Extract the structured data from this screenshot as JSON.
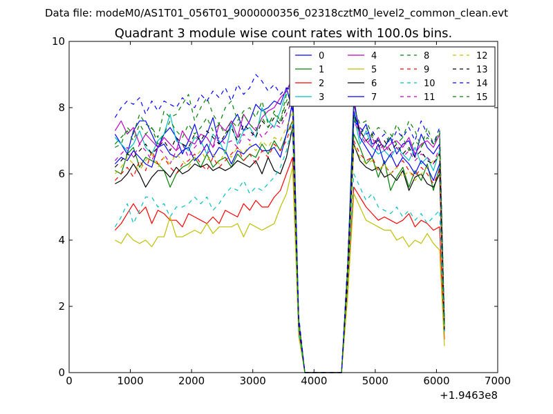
{
  "figure": {
    "suptitle": "Data file: modeM0/AS1T01_056T01_9000000356_02318cztM0_level2_common_clean.evt",
    "title": "Quadrant 3 module wise count rates with 100.0s bins.",
    "x_offset_label": "+1.9463e8"
  },
  "chart_data": {
    "type": "line",
    "title": "Quadrant 3 module wise count rates with 100.0s bins.",
    "xlabel": "",
    "ylabel": "",
    "xlim": [
      0,
      7000
    ],
    "ylim": [
      0,
      10
    ],
    "x_offset": "+1.9463e8",
    "xticks": [
      0,
      1000,
      2000,
      3000,
      4000,
      5000,
      6000,
      7000
    ],
    "yticks": [
      0,
      2,
      4,
      6,
      8,
      10
    ],
    "legend": {
      "placement": "top-right",
      "columns": 4
    },
    "x": [
      750,
      850,
      950,
      1050,
      1150,
      1250,
      1350,
      1450,
      1550,
      1650,
      1750,
      1850,
      1950,
      2050,
      2150,
      2250,
      2350,
      2450,
      2550,
      2650,
      2750,
      2850,
      2950,
      3050,
      3150,
      3250,
      3350,
      3450,
      3550,
      3650,
      3750,
      3850,
      3950,
      4050,
      4150,
      4250,
      4350,
      4450,
      4550,
      4650,
      4750,
      4850,
      4950,
      5050,
      5150,
      5250,
      5350,
      5450,
      5550,
      5650,
      5750,
      5850,
      5950,
      6050,
      6130
    ],
    "series": [
      {
        "name": "0",
        "color": "#0000ff",
        "dash": "solid",
        "values": [
          7.2,
          6.9,
          6.6,
          7.3,
          7.6,
          7.6,
          7.2,
          6.8,
          7.2,
          7.4,
          7.1,
          6.6,
          7.0,
          7.5,
          6.9,
          7.2,
          7.7,
          6.9,
          7.1,
          7.5,
          7.8,
          7.3,
          7.6,
          8.1,
          7.9,
          8.0,
          8.2,
          8.1,
          8.6,
          7.9,
          1.6,
          0.0,
          0.0,
          0.0,
          0.0,
          0.0,
          0.0,
          0.0,
          3.1,
          7.9,
          7.2,
          7.5,
          6.9,
          7.0,
          6.8,
          7.1,
          6.6,
          6.9,
          7.0,
          6.5,
          7.2,
          6.8,
          6.6,
          6.9,
          1.4
        ]
      },
      {
        "name": "1",
        "color": "#008000",
        "dash": "solid",
        "values": [
          6.1,
          6.0,
          6.6,
          6.8,
          6.2,
          6.5,
          6.4,
          6.3,
          6.1,
          5.6,
          6.0,
          6.2,
          6.3,
          6.5,
          6.2,
          6.6,
          6.2,
          6.4,
          6.5,
          6.2,
          6.6,
          6.4,
          6.6,
          6.5,
          6.9,
          6.6,
          7.0,
          6.7,
          7.2,
          7.6,
          1.5,
          0.0,
          0.0,
          0.0,
          0.0,
          0.0,
          0.0,
          0.0,
          2.9,
          7.2,
          6.8,
          6.3,
          6.5,
          5.9,
          6.4,
          5.5,
          5.9,
          6.2,
          5.6,
          6.1,
          5.8,
          6.3,
          5.5,
          6.2,
          1.3
        ]
      },
      {
        "name": "2",
        "color": "#ff0000",
        "dash": "solid",
        "values": [
          4.3,
          4.5,
          4.8,
          5.1,
          4.8,
          5.0,
          4.5,
          4.9,
          4.8,
          4.6,
          4.6,
          4.4,
          4.8,
          4.7,
          4.6,
          4.5,
          4.7,
          4.5,
          4.9,
          4.8,
          4.7,
          5.1,
          4.9,
          5.2,
          5.0,
          5.0,
          5.3,
          5.5,
          6.0,
          6.5,
          1.2,
          0.0,
          0.0,
          0.0,
          0.0,
          0.0,
          0.0,
          0.0,
          2.6,
          5.6,
          5.3,
          5.0,
          4.8,
          4.6,
          4.7,
          4.6,
          4.5,
          4.6,
          4.8,
          4.4,
          4.6,
          4.5,
          4.3,
          4.4,
          1.0
        ]
      },
      {
        "name": "3",
        "color": "#00bfbf",
        "dash": "solid",
        "values": [
          7.1,
          6.9,
          6.7,
          6.9,
          7.3,
          6.8,
          6.6,
          7.0,
          7.2,
          7.8,
          7.0,
          6.9,
          6.7,
          7.1,
          7.0,
          6.6,
          7.2,
          7.0,
          6.6,
          7.5,
          6.9,
          7.3,
          7.4,
          7.1,
          8.0,
          7.6,
          7.4,
          7.9,
          8.5,
          8.8,
          1.6,
          0.0,
          0.0,
          0.0,
          0.0,
          0.0,
          0.0,
          0.0,
          3.0,
          7.8,
          6.9,
          7.3,
          6.8,
          6.6,
          6.7,
          6.5,
          6.8,
          6.6,
          6.4,
          6.8,
          6.3,
          6.5,
          6.1,
          6.7,
          1.2
        ]
      },
      {
        "name": "4",
        "color": "#bf00bf",
        "dash": "solid",
        "values": [
          7.3,
          7.6,
          7.2,
          7.4,
          6.9,
          7.2,
          7.0,
          6.8,
          7.1,
          6.9,
          6.7,
          7.3,
          7.0,
          6.9,
          7.2,
          7.1,
          6.8,
          7.5,
          7.3,
          7.6,
          7.1,
          7.8,
          7.5,
          7.3,
          7.7,
          7.9,
          8.0,
          8.3,
          8.5,
          8.9,
          1.5,
          0.0,
          0.0,
          0.0,
          0.0,
          0.0,
          0.0,
          0.0,
          3.1,
          8.1,
          7.3,
          7.0,
          6.8,
          7.1,
          6.7,
          6.9,
          7.0,
          6.8,
          7.1,
          6.6,
          6.9,
          7.0,
          6.8,
          7.2,
          1.5
        ]
      },
      {
        "name": "5",
        "color": "#bfbf00",
        "dash": "solid",
        "values": [
          4.0,
          3.9,
          4.2,
          4.0,
          3.9,
          4.0,
          3.8,
          4.1,
          4.1,
          4.7,
          4.1,
          4.1,
          4.2,
          4.3,
          4.2,
          4.5,
          4.2,
          4.4,
          4.4,
          4.4,
          4.5,
          4.1,
          4.5,
          4.4,
          4.3,
          4.4,
          4.5,
          5.0,
          5.4,
          6.2,
          1.1,
          0.0,
          0.0,
          0.0,
          0.0,
          0.0,
          0.0,
          0.0,
          2.3,
          5.4,
          5.0,
          4.6,
          4.5,
          4.4,
          4.3,
          4.3,
          4.0,
          4.1,
          3.8,
          4.0,
          3.9,
          4.2,
          3.9,
          3.7,
          0.8
        ]
      },
      {
        "name": "6",
        "color": "#000000",
        "dash": "solid",
        "values": [
          5.7,
          5.8,
          6.0,
          6.3,
          6.0,
          5.6,
          5.9,
          6.1,
          6.1,
          5.9,
          6.2,
          6.0,
          6.1,
          6.3,
          6.2,
          6.3,
          6.1,
          6.2,
          6.1,
          6.2,
          6.4,
          6.3,
          6.2,
          6.4,
          6.0,
          6.5,
          6.1,
          6.0,
          6.5,
          7.4,
          1.4,
          0.0,
          0.0,
          0.0,
          0.0,
          0.0,
          0.0,
          0.0,
          2.8,
          6.9,
          6.4,
          6.2,
          6.1,
          6.2,
          5.9,
          6.0,
          5.8,
          6.1,
          5.5,
          5.9,
          6.0,
          5.7,
          5.6,
          6.0,
          1.2
        ]
      },
      {
        "name": "7",
        "color": "#0000ff",
        "dash": "solid",
        "values": [
          6.3,
          6.5,
          6.4,
          6.7,
          6.5,
          6.3,
          6.2,
          6.8,
          6.9,
          6.6,
          6.5,
          6.7,
          6.8,
          6.4,
          6.6,
          6.9,
          6.5,
          6.8,
          6.7,
          6.3,
          6.7,
          6.6,
          6.8,
          6.9,
          6.7,
          6.7,
          6.8,
          6.5,
          7.2,
          8.2,
          1.5,
          0.0,
          0.0,
          0.0,
          0.0,
          0.0,
          0.0,
          0.0,
          3.2,
          8.3,
          7.1,
          6.8,
          6.5,
          6.9,
          6.3,
          6.6,
          6.2,
          6.5,
          6.3,
          6.0,
          6.4,
          6.2,
          5.8,
          6.3,
          1.3
        ]
      },
      {
        "name": "8",
        "color": "#008000",
        "dash": "dashed",
        "values": [
          6.8,
          6.9,
          7.4,
          7.2,
          7.8,
          7.5,
          7.4,
          7.1,
          7.9,
          7.7,
          7.8,
          8.1,
          8.4,
          7.6,
          8.0,
          8.3,
          7.8,
          7.5,
          8.0,
          8.2,
          7.6,
          7.9,
          8.0,
          7.7,
          8.2,
          7.5,
          7.8,
          7.6,
          8.4,
          8.6,
          1.7,
          0.0,
          0.0,
          0.0,
          0.0,
          0.0,
          0.0,
          0.0,
          3.3,
          8.0,
          7.5,
          7.6,
          7.2,
          7.4,
          7.3,
          7.0,
          7.5,
          7.1,
          7.6,
          7.3,
          6.8,
          7.4,
          6.9,
          7.2,
          1.5
        ]
      },
      {
        "name": "9",
        "color": "#ff0000",
        "dash": "dashed",
        "values": [
          5.8,
          6.0,
          6.2,
          5.9,
          6.4,
          6.1,
          6.7,
          6.3,
          6.5,
          6.2,
          6.0,
          6.3,
          6.4,
          6.6,
          6.3,
          6.1,
          6.5,
          6.2,
          6.4,
          6.6,
          6.8,
          6.4,
          6.6,
          6.3,
          6.7,
          6.5,
          6.9,
          6.7,
          7.0,
          7.6,
          1.4,
          0.0,
          0.0,
          0.0,
          0.0,
          0.0,
          0.0,
          0.0,
          2.9,
          7.0,
          6.6,
          6.4,
          6.5,
          6.1,
          6.3,
          6.0,
          6.2,
          6.4,
          6.1,
          5.9,
          6.2,
          6.0,
          5.7,
          6.1,
          1.2
        ]
      },
      {
        "name": "10",
        "color": "#00bfbf",
        "dash": "dashed",
        "values": [
          4.4,
          4.7,
          5.1,
          4.5,
          4.9,
          5.3,
          5.3,
          5.0,
          5.1,
          4.7,
          5.0,
          5.0,
          5.1,
          5.3,
          5.1,
          5.3,
          4.9,
          5.1,
          5.4,
          5.6,
          5.5,
          5.8,
          5.4,
          5.6,
          5.5,
          5.7,
          5.9,
          6.2,
          6.7,
          7.5,
          1.2,
          0.0,
          0.0,
          0.0,
          0.0,
          0.0,
          0.0,
          0.0,
          2.7,
          6.0,
          5.6,
          5.2,
          5.4,
          5.0,
          4.9,
          4.8,
          5.0,
          4.7,
          4.9,
          4.6,
          4.8,
          4.5,
          4.7,
          4.9,
          1.1
        ]
      },
      {
        "name": "11",
        "color": "#bf00bf",
        "dash": "dashed",
        "values": [
          6.4,
          6.6,
          6.8,
          6.5,
          6.9,
          6.7,
          6.4,
          6.8,
          6.6,
          6.3,
          6.7,
          6.9,
          6.5,
          6.8,
          7.0,
          6.6,
          6.8,
          7.1,
          6.9,
          7.0,
          6.8,
          7.2,
          7.0,
          7.4,
          7.1,
          7.3,
          7.5,
          7.4,
          7.8,
          8.3,
          1.5,
          0.0,
          0.0,
          0.0,
          0.0,
          0.0,
          0.0,
          0.0,
          3.0,
          7.6,
          7.2,
          6.9,
          7.1,
          6.7,
          6.9,
          6.6,
          6.8,
          6.5,
          6.7,
          6.4,
          6.6,
          6.5,
          6.3,
          6.8,
          1.3
        ]
      },
      {
        "name": "12",
        "color": "#bfbf00",
        "dash": "dashed",
        "values": [
          6.0,
          6.2,
          6.5,
          6.3,
          6.1,
          6.4,
          6.6,
          6.2,
          6.5,
          6.3,
          6.6,
          6.4,
          6.2,
          6.5,
          6.7,
          6.4,
          6.6,
          6.3,
          6.7,
          6.5,
          6.8,
          6.6,
          6.9,
          6.7,
          7.0,
          6.8,
          7.1,
          7.0,
          7.4,
          7.9,
          1.4,
          0.0,
          0.0,
          0.0,
          0.0,
          0.0,
          0.0,
          0.0,
          2.8,
          6.9,
          6.5,
          6.3,
          6.4,
          6.1,
          6.3,
          6.0,
          6.2,
          5.9,
          6.1,
          5.8,
          6.0,
          6.2,
          6.4,
          6.6,
          1.2
        ]
      },
      {
        "name": "13",
        "color": "#000000",
        "dash": "dashed",
        "values": [
          6.2,
          6.4,
          6.6,
          6.5,
          6.7,
          6.9,
          6.6,
          6.8,
          7.0,
          6.7,
          7.1,
          6.9,
          6.8,
          7.2,
          7.0,
          7.3,
          7.1,
          6.9,
          7.2,
          7.4,
          7.0,
          7.5,
          7.3,
          7.1,
          7.6,
          7.4,
          7.7,
          7.5,
          8.0,
          8.5,
          1.6,
          0.0,
          0.0,
          0.0,
          0.0,
          0.0,
          0.0,
          0.0,
          3.1,
          7.8,
          7.3,
          7.0,
          7.2,
          6.8,
          7.0,
          6.7,
          6.9,
          6.6,
          6.8,
          6.5,
          6.7,
          6.4,
          6.3,
          6.6,
          1.3
        ]
      },
      {
        "name": "14",
        "color": "#0000ff",
        "dash": "dashed",
        "values": [
          7.7,
          8.0,
          8.2,
          8.1,
          8.3,
          7.8,
          8.2,
          7.9,
          8.2,
          8.1,
          8.0,
          8.3,
          8.1,
          8.0,
          8.4,
          8.2,
          8.5,
          8.3,
          8.6,
          8.2,
          8.7,
          8.4,
          8.6,
          9.0,
          8.8,
          8.5,
          8.7,
          8.4,
          8.6,
          8.5,
          1.7,
          0.0,
          0.0,
          0.0,
          0.0,
          0.0,
          0.0,
          0.0,
          3.4,
          7.6,
          7.4,
          7.2,
          7.3,
          7.0,
          7.2,
          6.9,
          7.3,
          7.1,
          7.4,
          7.0,
          7.6,
          7.2,
          6.9,
          7.4,
          1.6
        ]
      },
      {
        "name": "15",
        "color": "#008000",
        "dash": "dashed",
        "values": [
          6.9,
          7.1,
          7.3,
          7.0,
          7.5,
          7.2,
          7.4,
          6.9,
          7.2,
          7.6,
          7.3,
          7.1,
          7.5,
          7.2,
          7.4,
          7.7,
          7.3,
          7.5,
          7.2,
          7.6,
          7.4,
          7.8,
          7.5,
          7.3,
          7.7,
          7.4,
          7.9,
          7.6,
          8.2,
          8.6,
          1.6,
          0.0,
          0.0,
          0.0,
          0.0,
          0.0,
          0.0,
          0.0,
          3.2,
          7.7,
          7.2,
          7.4,
          7.1,
          7.0,
          6.8,
          7.2,
          6.9,
          7.1,
          6.7,
          7.0,
          6.8,
          7.1,
          6.9,
          7.3,
          1.4
        ]
      }
    ]
  }
}
